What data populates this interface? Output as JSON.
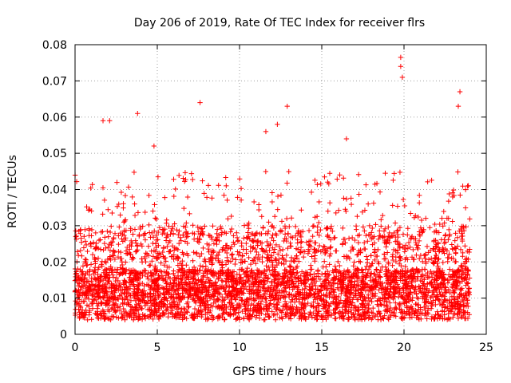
{
  "chart_data": {
    "type": "scatter",
    "title": "Day 206 of 2019, Rate Of TEC Index for receiver flrs",
    "xlabel": "GPS time / hours",
    "ylabel": "ROTI / TECUs",
    "xlim": [
      0,
      25
    ],
    "ylim": [
      0,
      0.08
    ],
    "xticks": [
      "0",
      "5",
      "10",
      "15",
      "20",
      "25"
    ],
    "yticks": [
      "0",
      "0.01",
      "0.02",
      "0.03",
      "0.04",
      "0.05",
      "0.06",
      "0.07",
      "0.08"
    ],
    "grid": true,
    "marker": "+",
    "color": "#ff0000",
    "data_span_hours": [
      0,
      24
    ],
    "baseline_roti": 0.01,
    "typical_max_roti": 0.045,
    "peaks": [
      {
        "x": 1.7,
        "y": 0.059
      },
      {
        "x": 2.1,
        "y": 0.059
      },
      {
        "x": 3.8,
        "y": 0.061
      },
      {
        "x": 4.8,
        "y": 0.052
      },
      {
        "x": 7.6,
        "y": 0.064
      },
      {
        "x": 11.6,
        "y": 0.056
      },
      {
        "x": 12.3,
        "y": 0.058
      },
      {
        "x": 12.9,
        "y": 0.063
      },
      {
        "x": 16.5,
        "y": 0.054
      },
      {
        "x": 19.8,
        "y": 0.0765
      },
      {
        "x": 19.8,
        "y": 0.074
      },
      {
        "x": 19.9,
        "y": 0.071
      },
      {
        "x": 23.4,
        "y": 0.067
      },
      {
        "x": 23.3,
        "y": 0.063
      }
    ]
  }
}
